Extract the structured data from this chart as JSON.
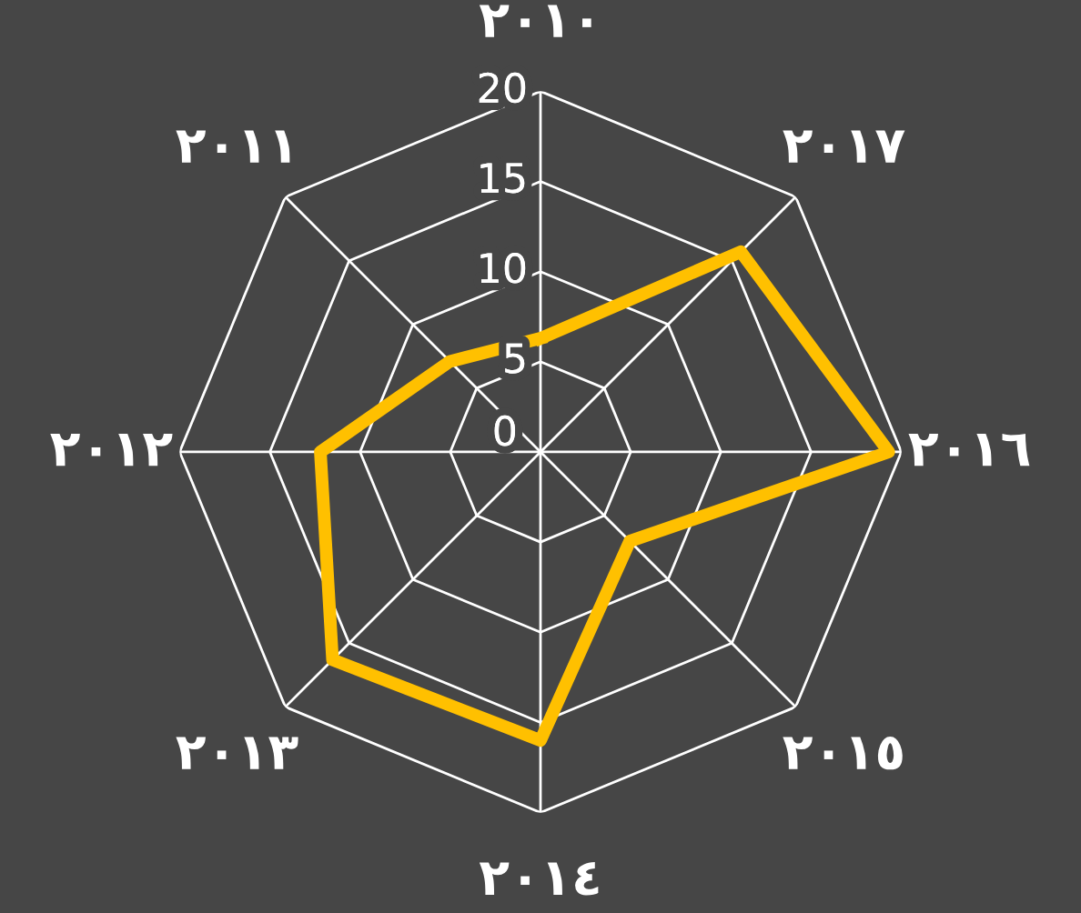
{
  "chart_data": {
    "type": "radar",
    "categories": [
      "٢٠١٠",
      "٢٠١٧",
      "٢٠١٦",
      "٢٠١٥",
      "٢٠١٤",
      "٢٠١٣",
      "٢٠١٢",
      "٢٠١١"
    ],
    "series": [
      {
        "color": "#ffc000",
        "values": [
          6.3,
          15.7,
          19.3,
          7,
          16,
          16.3,
          12.2,
          7.1
        ]
      }
    ],
    "ylim": [
      0,
      20
    ],
    "yticks": [
      0,
      5,
      10,
      15,
      20
    ],
    "grid": true,
    "marker": "none",
    "line_style": "solid"
  }
}
